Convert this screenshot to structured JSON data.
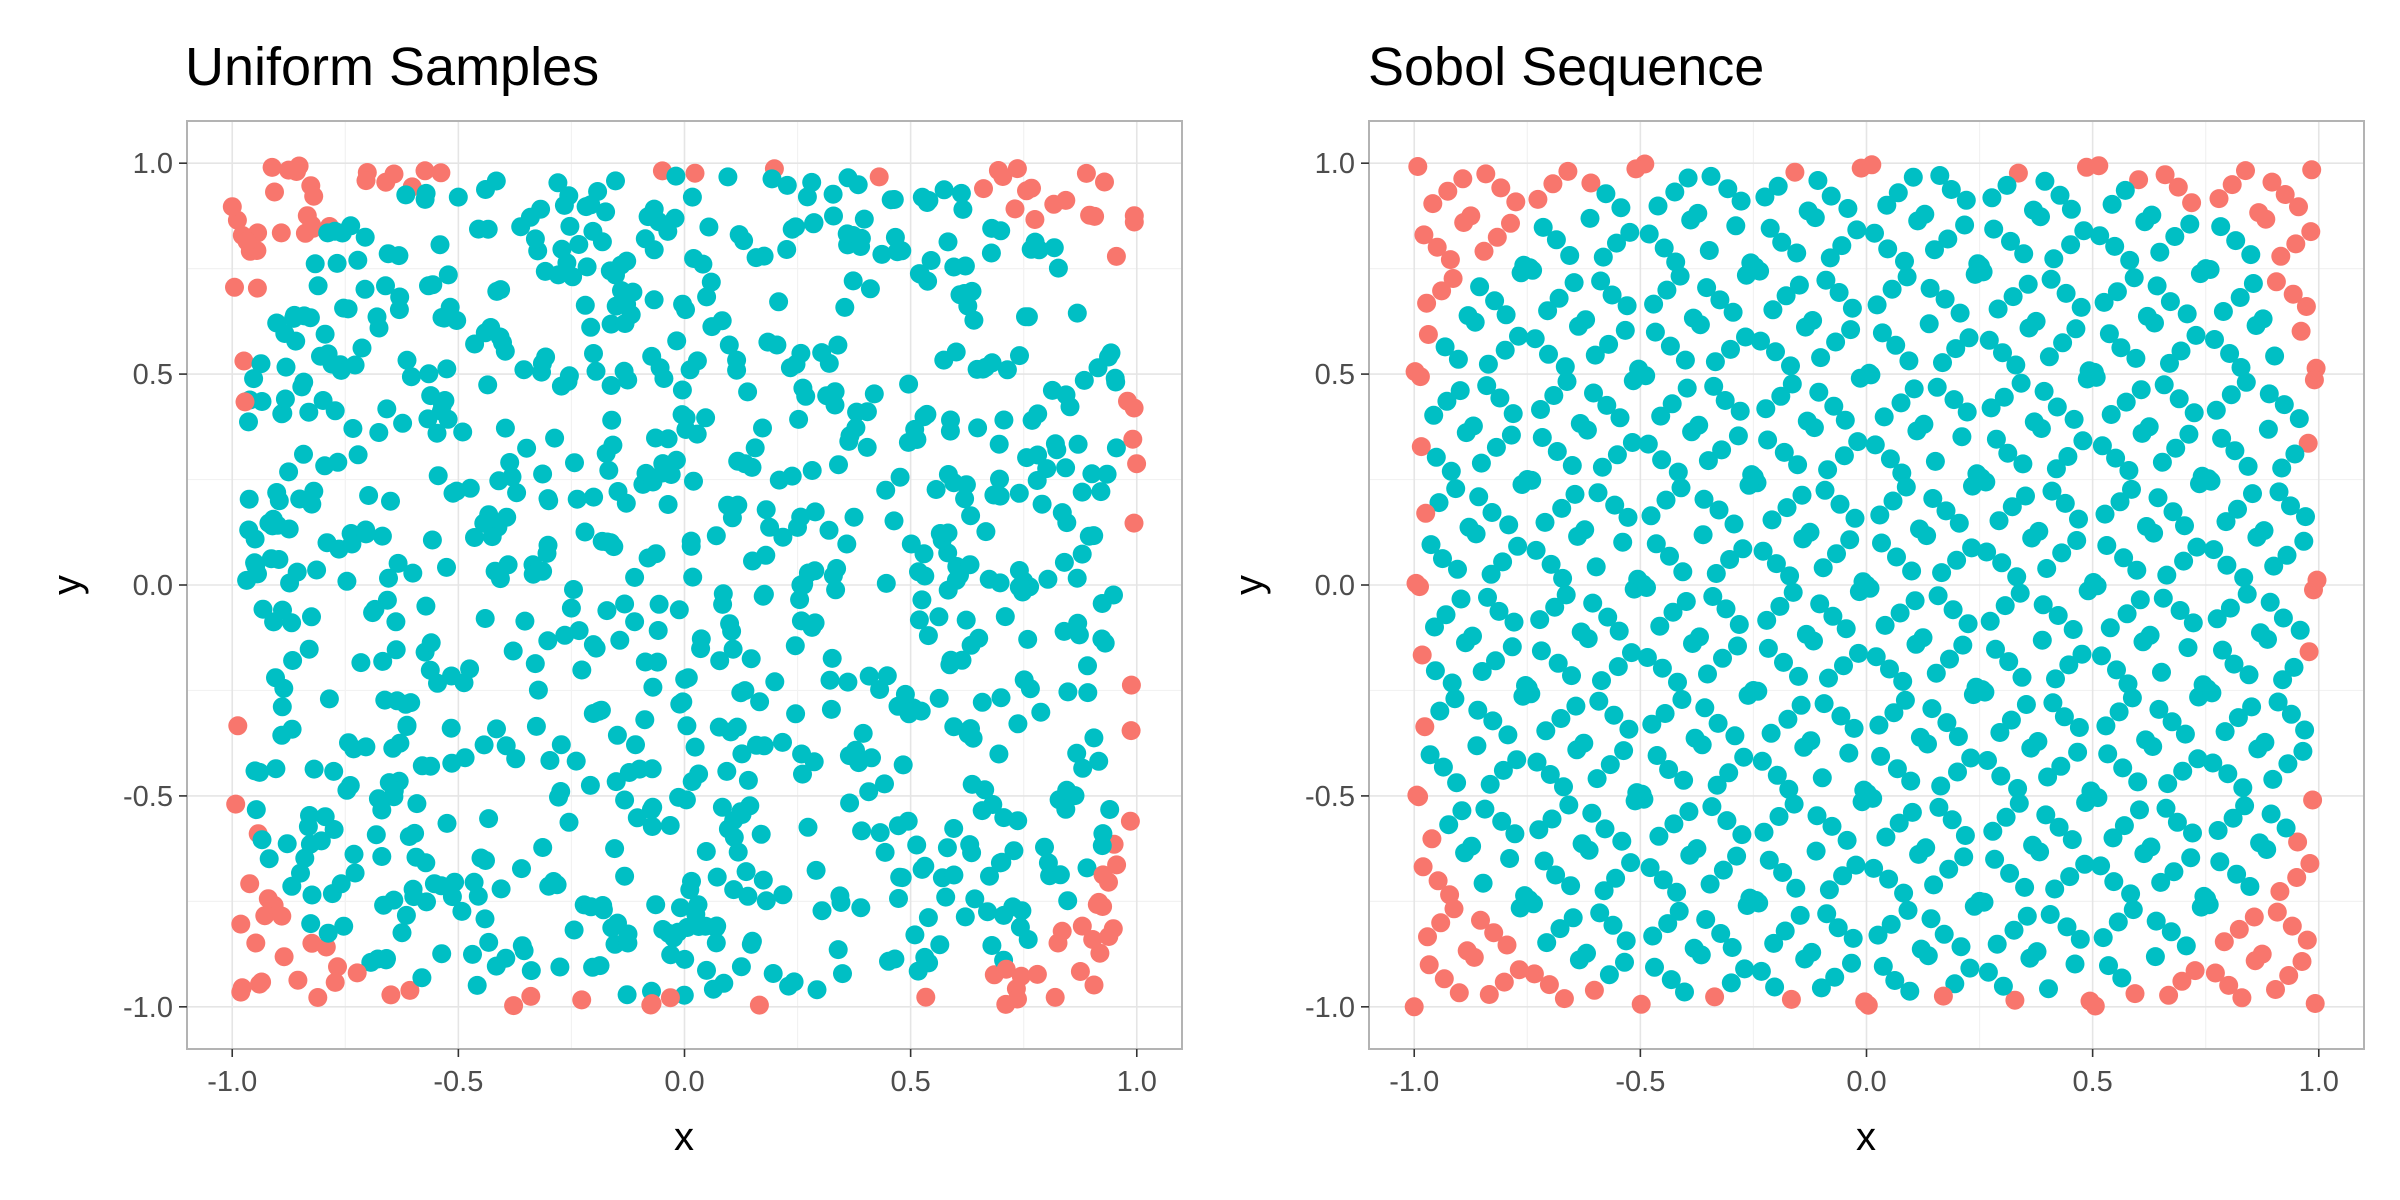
{
  "colors": {
    "inside": "#00BFC4",
    "outside": "#F8766D"
  },
  "chart_data": [
    {
      "type": "scatter",
      "title": "Uniform Samples",
      "xlabel": "x",
      "ylabel": "y",
      "xlim": [
        -1.1,
        1.1
      ],
      "ylim": [
        -1.1,
        1.1
      ],
      "xticks": [
        "-1.0",
        "-0.5",
        "0.0",
        "0.5",
        "1.0"
      ],
      "yticks": [
        "-1.0",
        "-0.5",
        "0.0",
        "0.5",
        "1.0"
      ],
      "grid": true,
      "legend": "none",
      "sampling": "uniform",
      "n_points": 1000,
      "color_rule": "inside when x^4 + y^4 < 0.9; otherwise outside"
    },
    {
      "type": "scatter",
      "title": "Sobol Sequence",
      "xlabel": "x",
      "ylabel": "y",
      "xlim": [
        -1.1,
        1.1
      ],
      "ylim": [
        -1.1,
        1.1
      ],
      "xticks": [
        "-1.0",
        "-0.5",
        "0.0",
        "0.5",
        "1.0"
      ],
      "yticks": [
        "-1.0",
        "-0.5",
        "0.0",
        "0.5",
        "1.0"
      ],
      "grid": true,
      "legend": "none",
      "sampling": "sobol",
      "n_points": 1000,
      "color_rule": "inside when x^4 + y^4 < 0.9; otherwise outside"
    }
  ]
}
